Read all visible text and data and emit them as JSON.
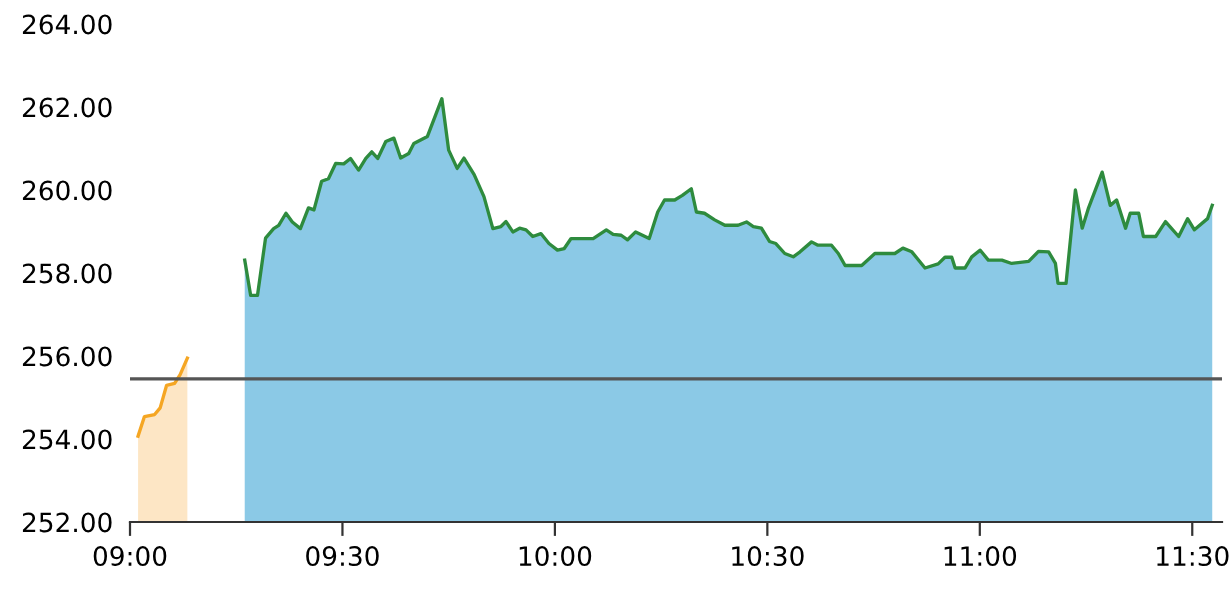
{
  "chart_data": {
    "type": "area",
    "xlim": [
      9.0,
      11.57
    ],
    "ylim": [
      252,
      264
    ],
    "xticks": [
      {
        "value": 9.0,
        "label": "09:00"
      },
      {
        "value": 9.5,
        "label": "09:30"
      },
      {
        "value": 10.0,
        "label": "10:00"
      },
      {
        "value": 10.5,
        "label": "10:30"
      },
      {
        "value": 11.0,
        "label": "11:00"
      },
      {
        "value": 11.5,
        "label": "11:30"
      }
    ],
    "yticks": [
      {
        "value": 252,
        "label": "252.00"
      },
      {
        "value": 254,
        "label": "254.00"
      },
      {
        "value": 256,
        "label": "256.00"
      },
      {
        "value": 258,
        "label": "258.00"
      },
      {
        "value": 260,
        "label": "260.00"
      },
      {
        "value": 262,
        "label": "262.00"
      },
      {
        "value": 264,
        "label": "264.00"
      }
    ],
    "grid": false,
    "legend": false,
    "ref_lines": [
      {
        "axis": "y",
        "value": 255.45,
        "color": "#555555"
      }
    ],
    "series": [
      {
        "color": "#f5a623",
        "x": [
          9.019,
          9.034,
          9.058,
          9.071,
          9.086,
          9.105,
          9.118,
          9.135
        ],
        "values": [
          254.07,
          254.54,
          254.59,
          254.75,
          255.29,
          255.34,
          255.55,
          255.95
        ]
      },
      {
        "color": "#2e8b3e",
        "x": [
          9.27,
          9.284,
          9.3,
          9.319,
          9.338,
          9.35,
          9.367,
          9.382,
          9.401,
          9.42,
          9.433,
          9.451,
          9.467,
          9.484,
          9.503,
          9.519,
          9.538,
          9.555,
          9.569,
          9.583,
          9.602,
          9.621,
          9.637,
          9.656,
          9.668,
          9.7,
          9.734,
          9.75,
          9.77,
          9.786,
          9.81,
          9.833,
          9.854,
          9.873,
          9.885,
          9.901,
          9.917,
          9.932,
          9.948,
          9.967,
          9.986,
          10.006,
          10.022,
          10.038,
          10.09,
          10.121,
          10.137,
          10.156,
          10.171,
          10.19,
          10.206,
          10.222,
          10.242,
          10.258,
          10.282,
          10.3,
          10.321,
          10.333,
          10.352,
          10.376,
          10.4,
          10.431,
          10.451,
          10.467,
          10.486,
          10.505,
          10.52,
          10.541,
          10.561,
          10.577,
          10.604,
          10.619,
          10.651,
          10.667,
          10.683,
          10.722,
          10.753,
          10.8,
          10.819,
          10.84,
          10.871,
          10.902,
          10.918,
          10.934,
          10.942,
          10.965,
          10.981,
          11.001,
          11.02,
          11.052,
          11.075,
          11.115,
          11.138,
          11.162,
          11.178,
          11.184,
          11.203,
          11.225,
          11.241,
          11.256,
          11.288,
          11.307,
          11.322,
          11.343,
          11.354,
          11.374,
          11.385,
          11.414,
          11.437,
          11.468,
          11.489,
          11.505,
          11.536,
          11.547
        ],
        "values": [
          258.31,
          257.46,
          257.46,
          258.84,
          259.07,
          259.15,
          259.44,
          259.23,
          259.07,
          259.57,
          259.52,
          260.21,
          260.27,
          260.64,
          260.63,
          260.76,
          260.48,
          260.76,
          260.92,
          260.76,
          261.17,
          261.25,
          260.77,
          260.88,
          261.12,
          261.29,
          262.2,
          260.96,
          260.52,
          260.77,
          260.37,
          259.84,
          259.07,
          259.12,
          259.24,
          258.99,
          259.08,
          259.04,
          258.88,
          258.95,
          258.71,
          258.55,
          258.59,
          258.83,
          258.83,
          259.04,
          258.93,
          258.91,
          258.8,
          258.99,
          258.91,
          258.83,
          259.47,
          259.76,
          259.76,
          259.87,
          260.03,
          259.47,
          259.44,
          259.28,
          259.15,
          259.15,
          259.23,
          259.12,
          259.08,
          258.76,
          258.71,
          258.47,
          258.39,
          258.51,
          258.75,
          258.67,
          258.67,
          258.47,
          258.18,
          258.18,
          258.47,
          258.47,
          258.6,
          258.51,
          258.12,
          258.22,
          258.38,
          258.38,
          258.12,
          258.12,
          258.39,
          258.55,
          258.31,
          258.31,
          258.23,
          258.28,
          258.52,
          258.51,
          258.23,
          257.75,
          257.75,
          260.0,
          259.08,
          259.57,
          260.43,
          259.63,
          259.76,
          259.08,
          259.44,
          259.44,
          258.88,
          258.88,
          259.24,
          258.88,
          259.31,
          259.04,
          259.31,
          259.63
        ]
      }
    ]
  }
}
